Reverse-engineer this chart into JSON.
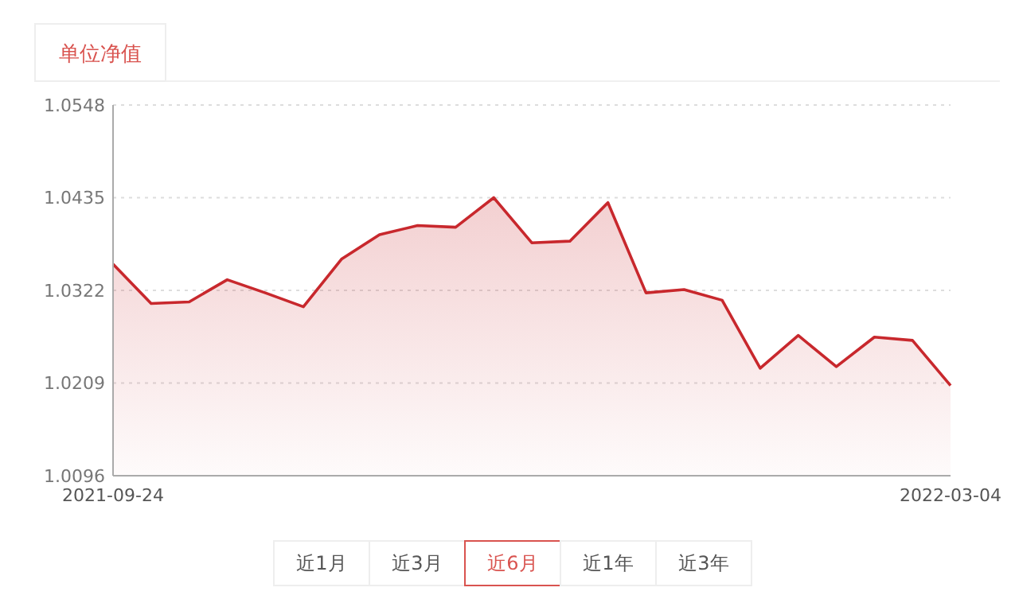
{
  "chart_data": {
    "type": "area",
    "title": "单位净值",
    "categories": [
      "2021-09-24",
      null,
      null,
      null,
      null,
      null,
      null,
      null,
      null,
      null,
      null,
      null,
      null,
      null,
      null,
      null,
      null,
      null,
      null,
      null,
      null,
      null,
      "2022-03-04"
    ],
    "series": [
      {
        "color": "#c8282d",
        "values": [
          1.0354,
          1.0306,
          1.0308,
          1.0335,
          1.0319,
          1.0302,
          1.036,
          1.039,
          1.0401,
          1.0399,
          1.0435,
          1.038,
          1.0382,
          1.0429,
          1.0319,
          1.0323,
          1.031,
          1.0227,
          1.0267,
          1.0229,
          1.0265,
          1.0261,
          1.0206
        ]
      }
    ],
    "ylim": [
      1.0096,
      1.0548
    ],
    "yticks": [
      1.0096,
      1.0209,
      1.0322,
      1.0435,
      1.0548
    ],
    "grid": "y",
    "marker": "none",
    "line_style": "solid",
    "annotations": [
      "近1月",
      "近3月",
      "近6月",
      "近1年",
      "近3年"
    ]
  }
}
